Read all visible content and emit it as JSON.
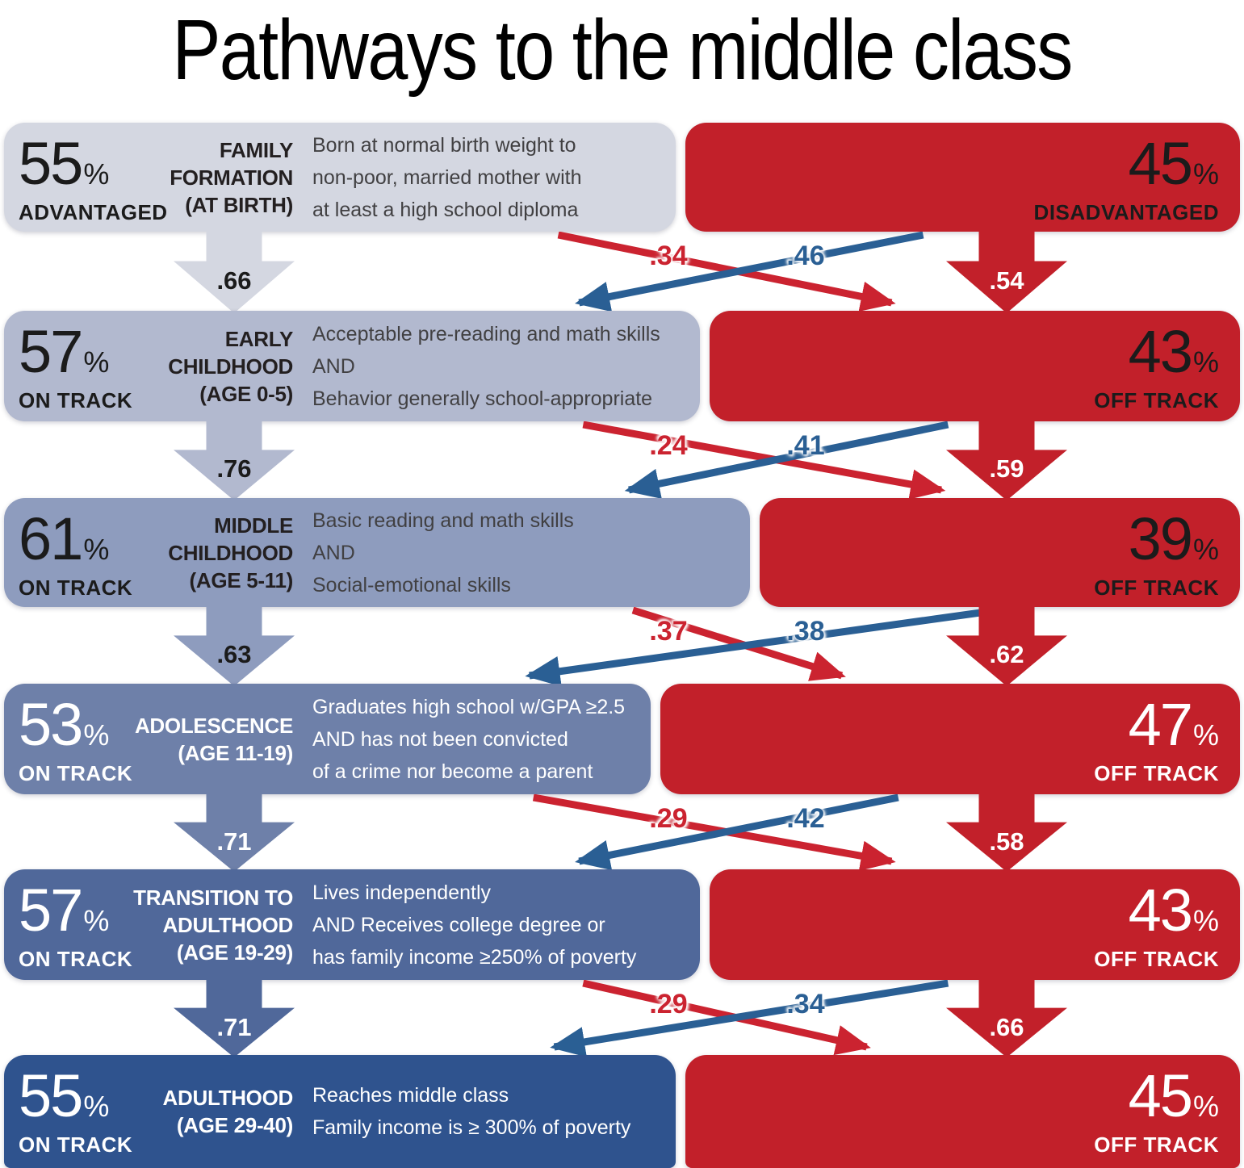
{
  "title": "Pathways to the middle class",
  "pct_sign": "%",
  "chart_data": {
    "type": "flow-diagram",
    "description_of_figure": "Six life stages; share on track to the middle class (left, blue) vs off track (right, red), with transition probabilities between consecutive stages.",
    "stages": [
      {
        "stage_lines": [
          "FAMILY",
          "FORMATION",
          "(AT BIRTH)"
        ],
        "on_pct": 55,
        "on_label": "ADVANTAGED",
        "off_pct": 45,
        "off_label": "DISADVANTAGED",
        "criteria_lines": [
          "Born at normal birth weight to",
          "non-poor, married mother with",
          "at least a high school diploma"
        ],
        "color": "#d4d7e1",
        "theme": "dark"
      },
      {
        "stage_lines": [
          "EARLY",
          "CHILDHOOD",
          "(AGE 0-5)"
        ],
        "on_pct": 57,
        "on_label": "ON TRACK",
        "off_pct": 43,
        "off_label": "OFF TRACK",
        "criteria_lines": [
          "Acceptable pre-reading and math skills",
          "AND",
          "Behavior generally school-appropriate"
        ],
        "color": "#b2b9cf",
        "theme": "dark"
      },
      {
        "stage_lines": [
          "MIDDLE",
          "CHILDHOOD",
          "(AGE 5-11)"
        ],
        "on_pct": 61,
        "on_label": "ON TRACK",
        "off_pct": 39,
        "off_label": "OFF TRACK",
        "criteria_lines": [
          "Basic reading and math skills",
          "AND",
          "Social-emotional skills"
        ],
        "color": "#8e9cbe",
        "theme": "dark"
      },
      {
        "stage_lines": [
          "ADOLESCENCE",
          "(AGE 11-19)"
        ],
        "on_pct": 53,
        "on_label": "ON TRACK",
        "off_pct": 47,
        "off_label": "OFF TRACK",
        "criteria_lines": [
          "Graduates high school w/GPA ≥2.5",
          "AND has not been convicted",
          "of a crime nor become a parent"
        ],
        "color": "#6e80a9",
        "theme": "light"
      },
      {
        "stage_lines": [
          "TRANSITION TO",
          "ADULTHOOD",
          "(AGE 19-29)"
        ],
        "on_pct": 57,
        "on_label": "ON TRACK",
        "off_pct": 43,
        "off_label": "OFF TRACK",
        "criteria_lines": [
          "Lives independently",
          "AND Receives college degree or",
          "has family income ≥250% of poverty"
        ],
        "color": "#50689a",
        "theme": "light"
      },
      {
        "stage_lines": [
          "ADULTHOOD",
          "(AGE 29-40)"
        ],
        "on_pct": 55,
        "on_label": "ON TRACK",
        "off_pct": 45,
        "off_label": "OFF TRACK",
        "criteria_lines": [
          "Reaches middle class",
          "Family income is ≥ 300% of poverty"
        ],
        "color": "#2f538e",
        "theme": "light"
      }
    ],
    "transitions": [
      {
        "stay_on": ".66",
        "on_to_off": ".34",
        "off_to_on": ".46",
        "stay_off": ".54"
      },
      {
        "stay_on": ".76",
        "on_to_off": ".24",
        "off_to_on": ".41",
        "stay_off": ".59"
      },
      {
        "stay_on": ".63",
        "on_to_off": ".37",
        "off_to_on": ".38",
        "stay_off": ".62"
      },
      {
        "stay_on": ".71",
        "on_to_off": ".29",
        "off_to_on": ".42",
        "stay_off": ".58"
      },
      {
        "stay_on": ".71",
        "on_to_off": ".29",
        "off_to_on": ".34",
        "stay_off": ".66"
      }
    ],
    "colors": {
      "off_track_red": "#c2202a",
      "cross_arrow_red": "#cb2330",
      "cross_arrow_blue": "#2a5f94"
    }
  }
}
